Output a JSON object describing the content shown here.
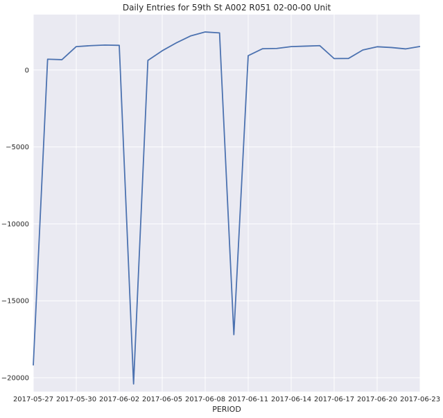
{
  "chart_data": {
    "type": "line",
    "title": "Daily Entries for 59th St A002 R051 02-00-00 Unit",
    "xlabel": "PERIOD",
    "ylabel": "",
    "grid": true,
    "colors": {
      "background": "#eaeaf2",
      "grid": "#ffffff",
      "line": "#4c72b0",
      "text": "#262626"
    },
    "xlim": [
      "2017-05-27",
      "2017-06-23"
    ],
    "ylim": [
      -20900,
      3600
    ],
    "x_ticks": [
      "2017-05-27",
      "2017-05-30",
      "2017-06-02",
      "2017-06-05",
      "2017-06-08",
      "2017-06-11",
      "2017-06-14",
      "2017-06-17",
      "2017-06-20",
      "2017-06-23"
    ],
    "y_ticks": [
      0,
      -5000,
      -10000,
      -15000,
      -20000
    ],
    "y_tick_labels": [
      "0",
      "−5000",
      "−10000",
      "−15000",
      "−20000"
    ],
    "series": [
      {
        "x": [
          "2017-05-27",
          "2017-05-28",
          "2017-05-29",
          "2017-05-30",
          "2017-05-31",
          "2017-06-01",
          "2017-06-02",
          "2017-06-03",
          "2017-06-04",
          "2017-06-05",
          "2017-06-06",
          "2017-06-07",
          "2017-06-08",
          "2017-06-09",
          "2017-06-10",
          "2017-06-11",
          "2017-06-12",
          "2017-06-13",
          "2017-06-14",
          "2017-06-15",
          "2017-06-16",
          "2017-06-17",
          "2017-06-18",
          "2017-06-19",
          "2017-06-20",
          "2017-06-21",
          "2017-06-22",
          "2017-06-23"
        ],
        "values": [
          -19200,
          700,
          670,
          1520,
          1580,
          1620,
          1600,
          -20400,
          620,
          1250,
          1770,
          2220,
          2470,
          2410,
          -17200,
          930,
          1380,
          1400,
          1520,
          1550,
          1580,
          740,
          750,
          1300,
          1510,
          1460,
          1370,
          1530
        ]
      }
    ]
  }
}
